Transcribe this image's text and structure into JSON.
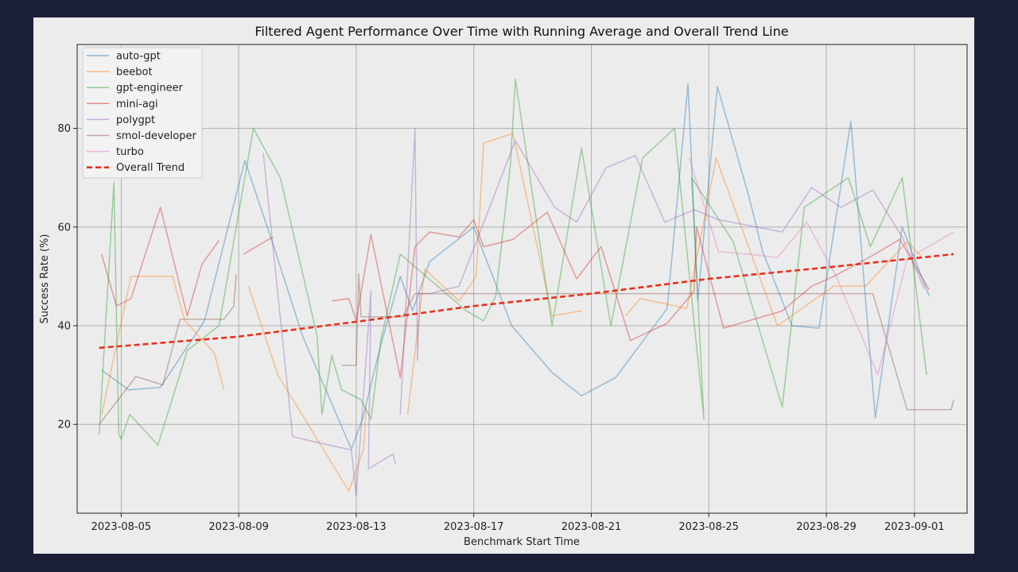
{
  "chart_data": {
    "type": "line",
    "title": "Filtered Agent Performance Over Time with Running Average and Overall Trend Line",
    "xlabel": "Benchmark Start Time",
    "ylabel": "Success Rate (%)",
    "xlim": [
      "2023-08-03T12:00",
      "2023-09-02T19:00"
    ],
    "ylim": [
      2,
      97
    ],
    "x_ticks": [
      "2023-08-05",
      "2023-08-09",
      "2023-08-13",
      "2023-08-17",
      "2023-08-21",
      "2023-08-25",
      "2023-08-29",
      "2023-09-01"
    ],
    "y_ticks": [
      20,
      40,
      60,
      80
    ],
    "grid": true,
    "legend_position": "top-left",
    "legend_entries": [
      "auto-gpt",
      "beebot",
      "gpt-engineer",
      "mini-agi",
      "polygpt",
      "smol-developer",
      "turbo",
      "Overall Trend"
    ],
    "series": [
      {
        "name": "auto-gpt",
        "color": "#1f77b4",
        "points": [
          [
            "2023-08-04T08:00",
            31
          ],
          [
            "2023-08-05T06:00",
            27
          ],
          [
            "2023-08-06T08:00",
            27.5
          ],
          [
            "2023-08-07T20:00",
            41
          ],
          [
            "2023-08-09T05:00",
            73.5
          ],
          [
            "2023-08-10T06:00",
            55
          ],
          [
            "2023-08-11T04:00",
            38
          ],
          [
            "2023-08-12T20:00",
            15
          ],
          [
            "2023-08-13T05:00",
            21
          ],
          [
            "2023-08-13T20:00",
            36
          ],
          [
            "2023-08-14T12:00",
            50
          ],
          [
            "2023-08-14T22:00",
            43
          ],
          [
            "2023-08-15T12:00",
            53
          ],
          [
            "2023-08-17T00:00",
            60
          ],
          [
            "2023-08-18T07:00",
            40
          ],
          [
            "2023-08-19T16:00",
            30.5
          ],
          [
            "2023-08-20T16:00",
            25.8
          ],
          [
            "2023-08-21T20:00",
            29.5
          ],
          [
            "2023-08-23T14:00",
            43.5
          ],
          [
            "2023-08-24T07:00",
            89
          ],
          [
            "2023-08-24T15:00",
            45
          ],
          [
            "2023-08-25T07:00",
            88.5
          ],
          [
            "2023-08-26T09:00",
            66
          ],
          [
            "2023-08-26T20:00",
            55
          ],
          [
            "2023-08-27T20:00",
            40
          ],
          [
            "2023-08-28T18:00",
            39.5
          ],
          [
            "2023-08-29T20:00",
            81.5
          ],
          [
            "2023-08-30T16:00",
            21.3
          ],
          [
            "2023-08-31T14:00",
            60
          ],
          [
            "2023-09-01T12:00",
            46
          ]
        ]
      },
      {
        "name": "beebot",
        "color": "#ff7f0e",
        "points": [
          [
            "2023-08-04T08:00",
            22
          ],
          [
            "2023-08-05T08:00",
            50
          ],
          [
            "2023-08-06T18:00",
            50
          ],
          [
            "2023-08-07T04:00",
            41
          ],
          [
            "2023-08-08T04:00",
            34.5
          ],
          [
            "2023-08-08T12:00",
            27
          ],
          null,
          [
            "2023-08-09T08:00",
            48
          ],
          [
            "2023-08-10T08:00",
            30
          ],
          [
            "2023-08-12T18:00",
            6.5
          ],
          [
            "2023-08-13T06:00",
            15
          ],
          [
            "2023-08-13T08:00",
            23.5
          ],
          null,
          [
            "2023-08-14T18:00",
            22
          ],
          [
            "2023-08-15T08:00",
            51.5
          ],
          [
            "2023-08-16T12:00",
            45
          ],
          [
            "2023-08-17T02:00",
            50
          ],
          [
            "2023-08-17T08:00",
            77
          ],
          [
            "2023-08-18T08:00",
            79
          ],
          [
            "2023-08-19T16:00",
            42
          ],
          [
            "2023-08-20T16:00",
            43
          ],
          null,
          [
            "2023-08-22T04:00",
            42
          ],
          [
            "2023-08-22T16:00",
            45.5
          ],
          [
            "2023-08-24T06:00",
            43.5
          ],
          [
            "2023-08-25T06:00",
            74
          ],
          [
            "2023-08-27T08:00",
            40
          ],
          [
            "2023-08-29T06:00",
            48
          ],
          [
            "2023-08-30T08:00",
            48
          ],
          [
            "2023-08-31T18:00",
            57
          ],
          [
            "2023-09-01T06:00",
            54
          ]
        ]
      },
      {
        "name": "gpt-engineer",
        "color": "#2ca02c",
        "points": [
          [
            "2023-08-04T06:00",
            18
          ],
          [
            "2023-08-04T18:00",
            69
          ],
          [
            "2023-08-04T22:00",
            18
          ],
          [
            "2023-08-05T00:00",
            17
          ],
          [
            "2023-08-05T07:00",
            22
          ],
          [
            "2023-08-06T06:00",
            15.8
          ],
          [
            "2023-08-07T06:00",
            35
          ],
          [
            "2023-08-08T08:00",
            40
          ],
          [
            "2023-08-09T12:00",
            80
          ],
          [
            "2023-08-10T10:00",
            70
          ],
          [
            "2023-08-11T16:00",
            38
          ],
          [
            "2023-08-11T20:00",
            22
          ],
          [
            "2023-08-12T04:00",
            34
          ],
          [
            "2023-08-12T12:00",
            27
          ],
          [
            "2023-08-13T04:00",
            25
          ],
          [
            "2023-08-13T12:00",
            21
          ],
          [
            "2023-08-13T20:00",
            37
          ],
          [
            "2023-08-14T12:00",
            54.5
          ],
          [
            "2023-08-16T18:00",
            43
          ],
          [
            "2023-08-17T08:00",
            41
          ],
          [
            "2023-08-17T18:00",
            46
          ],
          [
            "2023-08-18T06:00",
            73
          ],
          [
            "2023-08-18T10:00",
            90
          ],
          [
            "2023-08-19T16:00",
            40
          ],
          [
            "2023-08-20T16:00",
            76
          ],
          [
            "2023-08-21T16:00",
            40
          ],
          [
            "2023-08-22T18:00",
            74
          ],
          [
            "2023-08-23T20:00",
            80
          ],
          [
            "2023-08-24T20:00",
            21
          ],
          [
            "2023-08-24T10:00",
            70
          ],
          [
            "2023-08-25T20:00",
            57
          ],
          [
            "2023-08-27T12:00",
            23.5
          ],
          [
            "2023-08-28T06:00",
            64
          ],
          [
            "2023-08-29T18:00",
            70
          ],
          [
            "2023-08-30T12:00",
            56
          ],
          [
            "2023-08-31T14:00",
            70
          ],
          [
            "2023-09-01T10:00",
            30
          ]
        ]
      },
      {
        "name": "mini-agi",
        "color": "#d62728",
        "points": [
          [
            "2023-08-04T08:00",
            54.5
          ],
          [
            "2023-08-04T20:00",
            44
          ],
          [
            "2023-08-05T08:00",
            45.5
          ],
          [
            "2023-08-06T08:00",
            64
          ],
          [
            "2023-08-07T06:00",
            42
          ],
          [
            "2023-08-07T18:00",
            52.5
          ],
          [
            "2023-08-08T08:00",
            57.3
          ],
          null,
          [
            "2023-08-09T04:00",
            54.5
          ],
          [
            "2023-08-10T04:00",
            58
          ],
          null,
          [
            "2023-08-12T04:00",
            45
          ],
          [
            "2023-08-12T18:00",
            45.5
          ],
          [
            "2023-08-13T00:00",
            41
          ],
          [
            "2023-08-13T12:00",
            58.5
          ],
          [
            "2023-08-14T12:00",
            29.5
          ],
          [
            "2023-08-15T00:00",
            56
          ],
          [
            "2023-08-15T12:00",
            59
          ],
          [
            "2023-08-16T12:00",
            58
          ],
          [
            "2023-08-17T00:00",
            61.5
          ],
          [
            "2023-08-17T08:00",
            56
          ],
          [
            "2023-08-18T08:00",
            57.5
          ],
          [
            "2023-08-19T12:00",
            63
          ],
          [
            "2023-08-20T12:00",
            49.5
          ],
          [
            "2023-08-21T08:00",
            56
          ],
          [
            "2023-08-22T08:00",
            37
          ],
          [
            "2023-08-23T14:00",
            40.5
          ],
          [
            "2023-08-24T12:00",
            47
          ],
          [
            "2023-08-24T14:00",
            60
          ],
          [
            "2023-08-25T12:00",
            39.5
          ],
          [
            "2023-08-27T12:00",
            43
          ],
          [
            "2023-08-28T12:00",
            48
          ],
          [
            "2023-08-29T06:00",
            50
          ],
          [
            "2023-08-30T12:00",
            54
          ],
          [
            "2023-08-31T12:00",
            57.5
          ],
          [
            "2023-09-01T12:00",
            47.3
          ]
        ]
      },
      {
        "name": "polygpt",
        "color": "#9467bd",
        "points": [
          [
            "2023-08-09T20:00",
            75
          ],
          [
            "2023-08-10T20:00",
            17.5
          ],
          [
            "2023-08-12T20:00",
            14.8
          ],
          [
            "2023-08-13T00:00",
            5.5
          ],
          [
            "2023-08-13T12:00",
            47
          ],
          [
            "2023-08-13T10:00",
            11
          ],
          [
            "2023-08-14T06:00",
            14
          ],
          [
            "2023-08-14T08:00",
            12
          ],
          null,
          [
            "2023-08-14T12:00",
            22
          ],
          [
            "2023-08-15T00:00",
            80
          ],
          [
            "2023-08-15T02:00",
            33
          ],
          [
            "2023-08-15T04:00",
            46.5
          ],
          [
            "2023-08-15T12:00",
            46.5
          ],
          [
            "2023-08-16T12:00",
            48
          ],
          [
            "2023-08-18T10:00",
            77.5
          ],
          [
            "2023-08-19T18:00",
            64
          ],
          [
            "2023-08-20T12:00",
            61
          ],
          [
            "2023-08-21T12:00",
            72
          ],
          [
            "2023-08-22T12:00",
            74.5
          ],
          [
            "2023-08-23T12:00",
            61
          ],
          [
            "2023-08-24T12:00",
            63.5
          ],
          [
            "2023-08-25T08:00",
            61.5
          ],
          [
            "2023-08-27T12:00",
            59
          ],
          [
            "2023-08-28T12:00",
            68
          ],
          [
            "2023-08-29T12:00",
            64
          ],
          [
            "2023-08-30T14:00",
            67.5
          ],
          [
            "2023-08-31T14:00",
            58
          ],
          [
            "2023-09-01T08:00",
            47.5
          ]
        ]
      },
      {
        "name": "smol-developer",
        "color": "#8c564b",
        "points": [
          [
            "2023-08-04T06:00",
            20
          ],
          [
            "2023-08-05T12:00",
            29.7
          ],
          [
            "2023-08-06T10:00",
            28
          ],
          [
            "2023-08-07T00:00",
            41.3
          ],
          [
            "2023-08-08T12:00",
            41.3
          ],
          [
            "2023-08-08T20:00",
            44
          ],
          [
            "2023-08-08T22:00",
            50.5
          ],
          null,
          [
            "2023-08-12T12:00",
            32
          ],
          [
            "2023-08-13T00:00",
            32
          ],
          [
            "2023-08-13T02:00",
            50.5
          ],
          [
            "2023-08-13T04:00",
            41.8
          ],
          [
            "2023-08-14T14:00",
            41.8
          ],
          [
            "2023-08-15T00:00",
            46.5
          ],
          [
            "2023-08-18T08:00",
            46.5
          ],
          [
            "2023-08-24T08:00",
            46.5
          ],
          [
            "2023-08-30T14:00",
            46.5
          ],
          [
            "2023-08-31T18:00",
            23
          ],
          [
            "2023-09-02T06:00",
            23
          ],
          [
            "2023-09-02T08:00",
            25
          ]
        ]
      },
      {
        "name": "turbo",
        "color": "#e377c2",
        "points": [
          [
            "2023-08-24T08:00",
            74
          ],
          [
            "2023-08-25T08:00",
            55
          ],
          [
            "2023-08-26T08:00",
            54.5
          ],
          [
            "2023-08-27T08:00",
            53.8
          ],
          [
            "2023-08-28T08:00",
            61
          ],
          [
            "2023-08-29T08:00",
            50
          ],
          [
            "2023-08-30T08:00",
            36
          ],
          [
            "2023-08-30T18:00",
            30
          ],
          [
            "2023-08-31T18:00",
            53.5
          ],
          [
            "2023-09-02T08:00",
            59
          ]
        ]
      }
    ],
    "overall_trend": {
      "name": "Overall Trend",
      "color": "#e8321e",
      "points": [
        [
          "2023-08-04T06:00",
          35.5
        ],
        [
          "2023-08-09T00:00",
          37.8
        ],
        [
          "2023-08-13T00:00",
          40.8
        ],
        [
          "2023-08-17T00:00",
          44
        ],
        [
          "2023-08-21T00:00",
          46.5
        ],
        [
          "2023-08-25T00:00",
          49.5
        ],
        [
          "2023-08-29T00:00",
          51.8
        ],
        [
          "2023-09-02T08:00",
          54.5
        ]
      ]
    }
  }
}
